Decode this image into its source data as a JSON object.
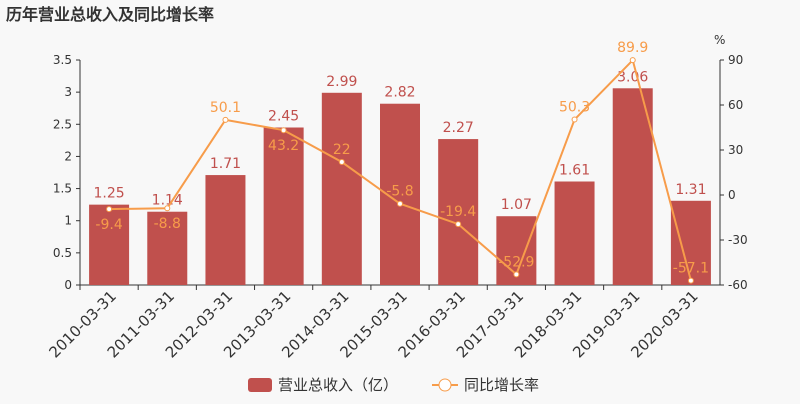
{
  "chart_data": {
    "type": "bar+line",
    "title": "历年营业总收入及同比增长率",
    "categories": [
      "2010-03-31",
      "2011-03-31",
      "2012-03-31",
      "2013-03-31",
      "2014-03-31",
      "2015-03-31",
      "2016-03-31",
      "2017-03-31",
      "2018-03-31",
      "2019-03-31",
      "2020-03-31"
    ],
    "series": [
      {
        "name": "营业总收入（亿）",
        "type": "bar",
        "axis": "left",
        "color": "#c0504d",
        "values": [
          1.25,
          1.14,
          1.71,
          2.45,
          2.99,
          2.82,
          2.27,
          1.07,
          1.61,
          3.06,
          1.31
        ]
      },
      {
        "name": "同比增长率",
        "type": "line",
        "axis": "right",
        "color": "#f79c4a",
        "values": [
          -9.4,
          -8.8,
          50.1,
          43.2,
          22,
          -5.8,
          -19.4,
          -52.9,
          50.3,
          89.9,
          -57.1
        ]
      }
    ],
    "y_left": {
      "ylim": [
        0,
        3.5
      ],
      "ticks": [
        "0",
        "0.5",
        "1",
        "1.5",
        "2",
        "2.5",
        "3",
        "3.5"
      ]
    },
    "y_right": {
      "label": "%",
      "ylim": [
        -60,
        90
      ],
      "ticks": [
        "-60",
        "-30",
        "0",
        "30",
        "60",
        "90"
      ]
    },
    "grid": false,
    "legend": "bottom"
  }
}
